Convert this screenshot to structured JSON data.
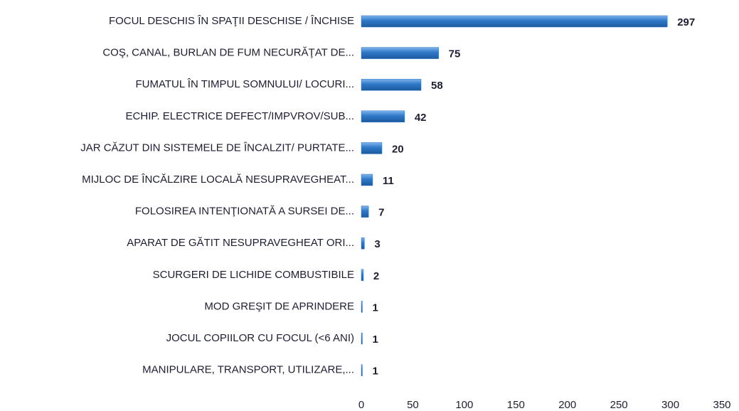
{
  "chart_data": {
    "type": "hbar",
    "categories": [
      "FOCUL DESCHIS ÎN SPAŢII DESCHISE / ÎNCHISE",
      "COŞ, CANAL, BURLAN DE FUM NECURĂŢAT DE...",
      "FUMATUL ÎN TIMPUL SOMNULUI/ LOCURI...",
      "ECHIP. ELECTRICE DEFECT/IMPVROV/SUB...",
      "JAR CĂZUT DIN SISTEMELE DE ÎNCALZIT/ PURTATE...",
      "MIJLOC DE ÎNCĂLZIRE LOCALĂ NESUPRAVEGHEAT...",
      "FOLOSIREA INTENŢIONATĂ A SURSEI DE...",
      "APARAT DE GĂTIT NESUPRAVEGHEAT ORI...",
      "SCURGERI DE LICHIDE COMBUSTIBILE",
      "MOD GREŞIT DE APRINDERE",
      "JOCUL COPIILOR CU FOCUL (<6 ANI)",
      "MANIPULARE, TRANSPORT, UTILIZARE,..."
    ],
    "values": [
      297,
      75,
      58,
      42,
      20,
      11,
      7,
      3,
      2,
      1,
      1,
      1
    ],
    "color": "#2e78c8",
    "xlim": [
      0,
      350
    ],
    "xticks": [
      0,
      50,
      100,
      150,
      200,
      250,
      300,
      350
    ],
    "grid": false
  }
}
